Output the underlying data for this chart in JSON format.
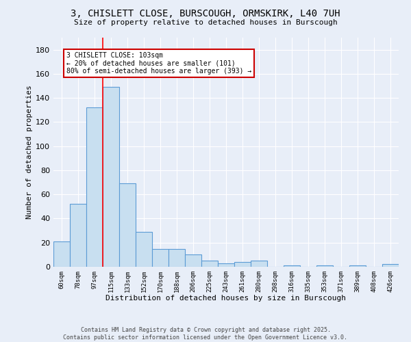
{
  "title_line1": "3, CHISLETT CLOSE, BURSCOUGH, ORMSKIRK, L40 7UH",
  "title_line2": "Size of property relative to detached houses in Burscough",
  "xlabel": "Distribution of detached houses by size in Burscough",
  "ylabel": "Number of detached properties",
  "categories": [
    "60sqm",
    "78sqm",
    "97sqm",
    "115sqm",
    "133sqm",
    "152sqm",
    "170sqm",
    "188sqm",
    "206sqm",
    "225sqm",
    "243sqm",
    "261sqm",
    "280sqm",
    "298sqm",
    "316sqm",
    "335sqm",
    "353sqm",
    "371sqm",
    "389sqm",
    "408sqm",
    "426sqm"
  ],
  "values": [
    21,
    52,
    132,
    149,
    69,
    29,
    15,
    15,
    10,
    5,
    3,
    4,
    5,
    0,
    1,
    0,
    1,
    0,
    1,
    0,
    2
  ],
  "bar_color": "#c8dff0",
  "bar_edge_color": "#5b9bd5",
  "background_color": "#e8eef8",
  "grid_color": "#ffffff",
  "red_line_x": 2.5,
  "annotation_text": "3 CHISLETT CLOSE: 103sqm\n← 20% of detached houses are smaller (101)\n80% of semi-detached houses are larger (393) →",
  "annotation_box_color": "#ffffff",
  "annotation_box_edge": "#cc0000",
  "ylim": [
    0,
    190
  ],
  "yticks": [
    0,
    20,
    40,
    60,
    80,
    100,
    120,
    140,
    160,
    180
  ],
  "footer_line1": "Contains HM Land Registry data © Crown copyright and database right 2025.",
  "footer_line2": "Contains public sector information licensed under the Open Government Licence v3.0."
}
